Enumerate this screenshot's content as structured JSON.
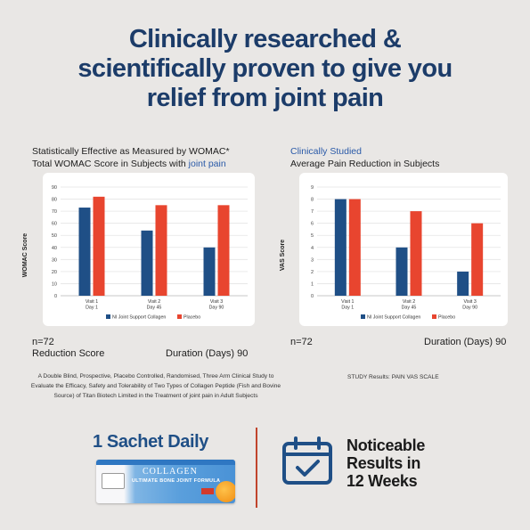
{
  "headline": {
    "line1": "Clinically researched &",
    "line2": "scientifically proven to give you",
    "line3": "relief from joint pain"
  },
  "left_panel": {
    "heading1": "Statistically Effective as Measured by WOMAC*",
    "heading2_pre": "Total WOMAC Score in Subjects with ",
    "heading2_accent": "joint pain",
    "n": "n=72",
    "caption_left": "Reduction Score",
    "caption_right": "Duration (Days) 90",
    "study": "A Double Blind, Prospective, Placebo Controlled, Randomised, Three Arm Clinical Study to Evaluate the Efficacy, Safety and Tolerability of Two Types of Collagen Peptide (Fish and Bovine Source) of Titan Biotech Limited in the Treatment of joint pain in Adult Subjects"
  },
  "right_panel": {
    "heading1": "Clinically Studied",
    "heading2": "Average Pain Reduction in Subjects",
    "n": "n=72",
    "caption_right": "Duration (Days) 90",
    "study": "STUDY Results: PAIN VAS SCALE"
  },
  "bottom": {
    "sachet_title": "1 Sachet Daily",
    "sachet_brand": "COLLAGEN",
    "sachet_sub": "ULTIMATE BONE JOINT FORMULA",
    "results_line1": "Noticeable",
    "results_line2": "Results in",
    "results_line3": "12 Weeks",
    "calendar_icon": "calendar-check-icon"
  },
  "colors": {
    "navy": "#1c3c69",
    "series_blue": "#1f4f86",
    "series_red": "#e8452f",
    "accent_blue": "#2a5aa8"
  },
  "chart_data": [
    {
      "type": "bar",
      "categories": [
        "Visit 1\nDay 1",
        "Visit 2\nDay 45",
        "Visit 3\nDay 90"
      ],
      "ylabel": "WOMAC Score",
      "ylim": [
        0,
        90
      ],
      "yticks": [
        0,
        10,
        20,
        30,
        40,
        50,
        60,
        70,
        80,
        90
      ],
      "grid": true,
      "legend_position": "bottom",
      "series": [
        {
          "name": "NI Joint Support Collagen",
          "color": "#1f4f86",
          "values": [
            73,
            54,
            40
          ]
        },
        {
          "name": "Placebo",
          "color": "#e8452f",
          "values": [
            82,
            75,
            75
          ]
        }
      ]
    },
    {
      "type": "bar",
      "categories": [
        "Visit 1\nDay 1",
        "Visit 2\nDay 45",
        "Visit 3\nDay 90"
      ],
      "ylabel": "VAS Score",
      "ylim": [
        0,
        9
      ],
      "yticks": [
        0,
        1,
        2,
        3,
        4,
        5,
        6,
        7,
        8,
        9
      ],
      "grid": true,
      "legend_position": "bottom",
      "series": [
        {
          "name": "NI Joint Support Collagen",
          "color": "#1f4f86",
          "values": [
            8,
            4,
            2
          ]
        },
        {
          "name": "Placebo",
          "color": "#e8452f",
          "values": [
            8,
            7,
            6
          ]
        }
      ]
    }
  ]
}
